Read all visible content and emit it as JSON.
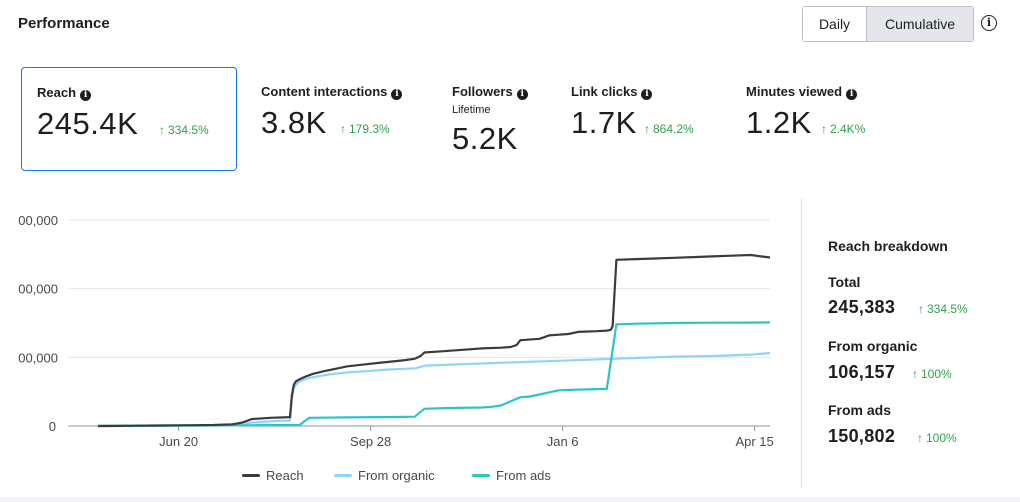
{
  "header": {
    "title": "Performance",
    "toggle": {
      "daily": "Daily",
      "cumulative": "Cumulative"
    },
    "info_icon": "info-circle-icon"
  },
  "metrics": [
    {
      "label": "Reach",
      "value": "245.4K",
      "change": "334.5%"
    },
    {
      "label": "Content interactions",
      "value": "3.8K",
      "change": "179.3%"
    },
    {
      "label": "Followers",
      "sublabel": "Lifetime",
      "value": "5.2K"
    },
    {
      "label": "Link clicks",
      "value": "1.7K",
      "change": "864.2%"
    },
    {
      "label": "Minutes viewed",
      "value": "1.2K",
      "change": "2.4K%"
    }
  ],
  "breakdown": {
    "title": "Reach breakdown",
    "total": {
      "label": "Total",
      "value": "245,383",
      "change": "334.5%"
    },
    "organic": {
      "label": "From organic",
      "value": "106,157",
      "change": "100%"
    },
    "ads": {
      "label": "From ads",
      "value": "150,802",
      "change": "100%"
    }
  },
  "colors": {
    "reach": "#3a3b3c",
    "organic": "#8fd3ff",
    "ads": "#2bc5c9",
    "positive": "#31a24c",
    "selected_border": "#1877f2"
  },
  "chart_data": {
    "type": "line",
    "title": "",
    "ytick_labels": [
      "0",
      "00,000",
      "00,000",
      "00,000"
    ],
    "ytick_values": [
      0,
      100000,
      200000,
      300000
    ],
    "ylim": [
      0,
      300000
    ],
    "xtick_labels": [
      "Jun 20",
      "Sep 28",
      "Jan 6",
      "Apr 15"
    ],
    "xtick_positions": [
      42,
      142,
      242,
      342
    ],
    "xlim": [
      0,
      350
    ],
    "legend": [
      "Reach",
      "From organic",
      "From ads"
    ],
    "series": [
      {
        "name": "Reach",
        "color": "#3a3b3c",
        "x": [
          0,
          10,
          20,
          30,
          40,
          50,
          60,
          70,
          75,
          80,
          90,
          100,
          101,
          102,
          103,
          105,
          108,
          112,
          118,
          125,
          130,
          140,
          150,
          160,
          165,
          168,
          170,
          180,
          190,
          200,
          210,
          215,
          218,
          220,
          230,
          235,
          240,
          245,
          250,
          260,
          265,
          267,
          268,
          270,
          280,
          290,
          300,
          310,
          320,
          330,
          340,
          350
        ],
        "y": [
          0,
          200,
          400,
          700,
          1000,
          1200,
          1500,
          2500,
          5000,
          10000,
          12000,
          13000,
          45000,
          60000,
          65000,
          68000,
          72000,
          76000,
          80000,
          84000,
          87000,
          90000,
          93000,
          96000,
          98000,
          102000,
          107000,
          109000,
          111000,
          113000,
          114000,
          115000,
          118000,
          125000,
          127000,
          132000,
          133000,
          134000,
          137000,
          138000,
          139000,
          140000,
          145000,
          242000,
          243000,
          244000,
          245000,
          246000,
          247000,
          248000,
          249000,
          245383
        ]
      },
      {
        "name": "From organic",
        "color": "#8fd3ff",
        "x": [
          0,
          40,
          70,
          75,
          80,
          90,
          100,
          101,
          102,
          103,
          105,
          110,
          120,
          130,
          140,
          150,
          165,
          168,
          170,
          180,
          200,
          220,
          240,
          260,
          280,
          300,
          320,
          340,
          350
        ],
        "y": [
          0,
          500,
          1000,
          3000,
          5000,
          7000,
          8000,
          40000,
          55000,
          60000,
          65000,
          70000,
          75000,
          78000,
          80000,
          82000,
          84000,
          86000,
          88000,
          89000,
          91000,
          93000,
          95000,
          97000,
          99000,
          101000,
          102000,
          104000,
          106157
        ]
      },
      {
        "name": "From ads",
        "color": "#2bc5c9",
        "x": [
          0,
          40,
          80,
          105,
          110,
          130,
          150,
          165,
          170,
          180,
          200,
          205,
          210,
          215,
          220,
          225,
          240,
          250,
          265,
          270,
          280,
          300,
          320,
          340,
          350
        ],
        "y": [
          0,
          500,
          1000,
          1500,
          12000,
          12500,
          13000,
          13500,
          25000,
          26000,
          27000,
          28000,
          30000,
          36000,
          42000,
          43000,
          52000,
          53000,
          54000,
          148000,
          149000,
          150000,
          150500,
          150600,
          150802
        ]
      }
    ]
  }
}
